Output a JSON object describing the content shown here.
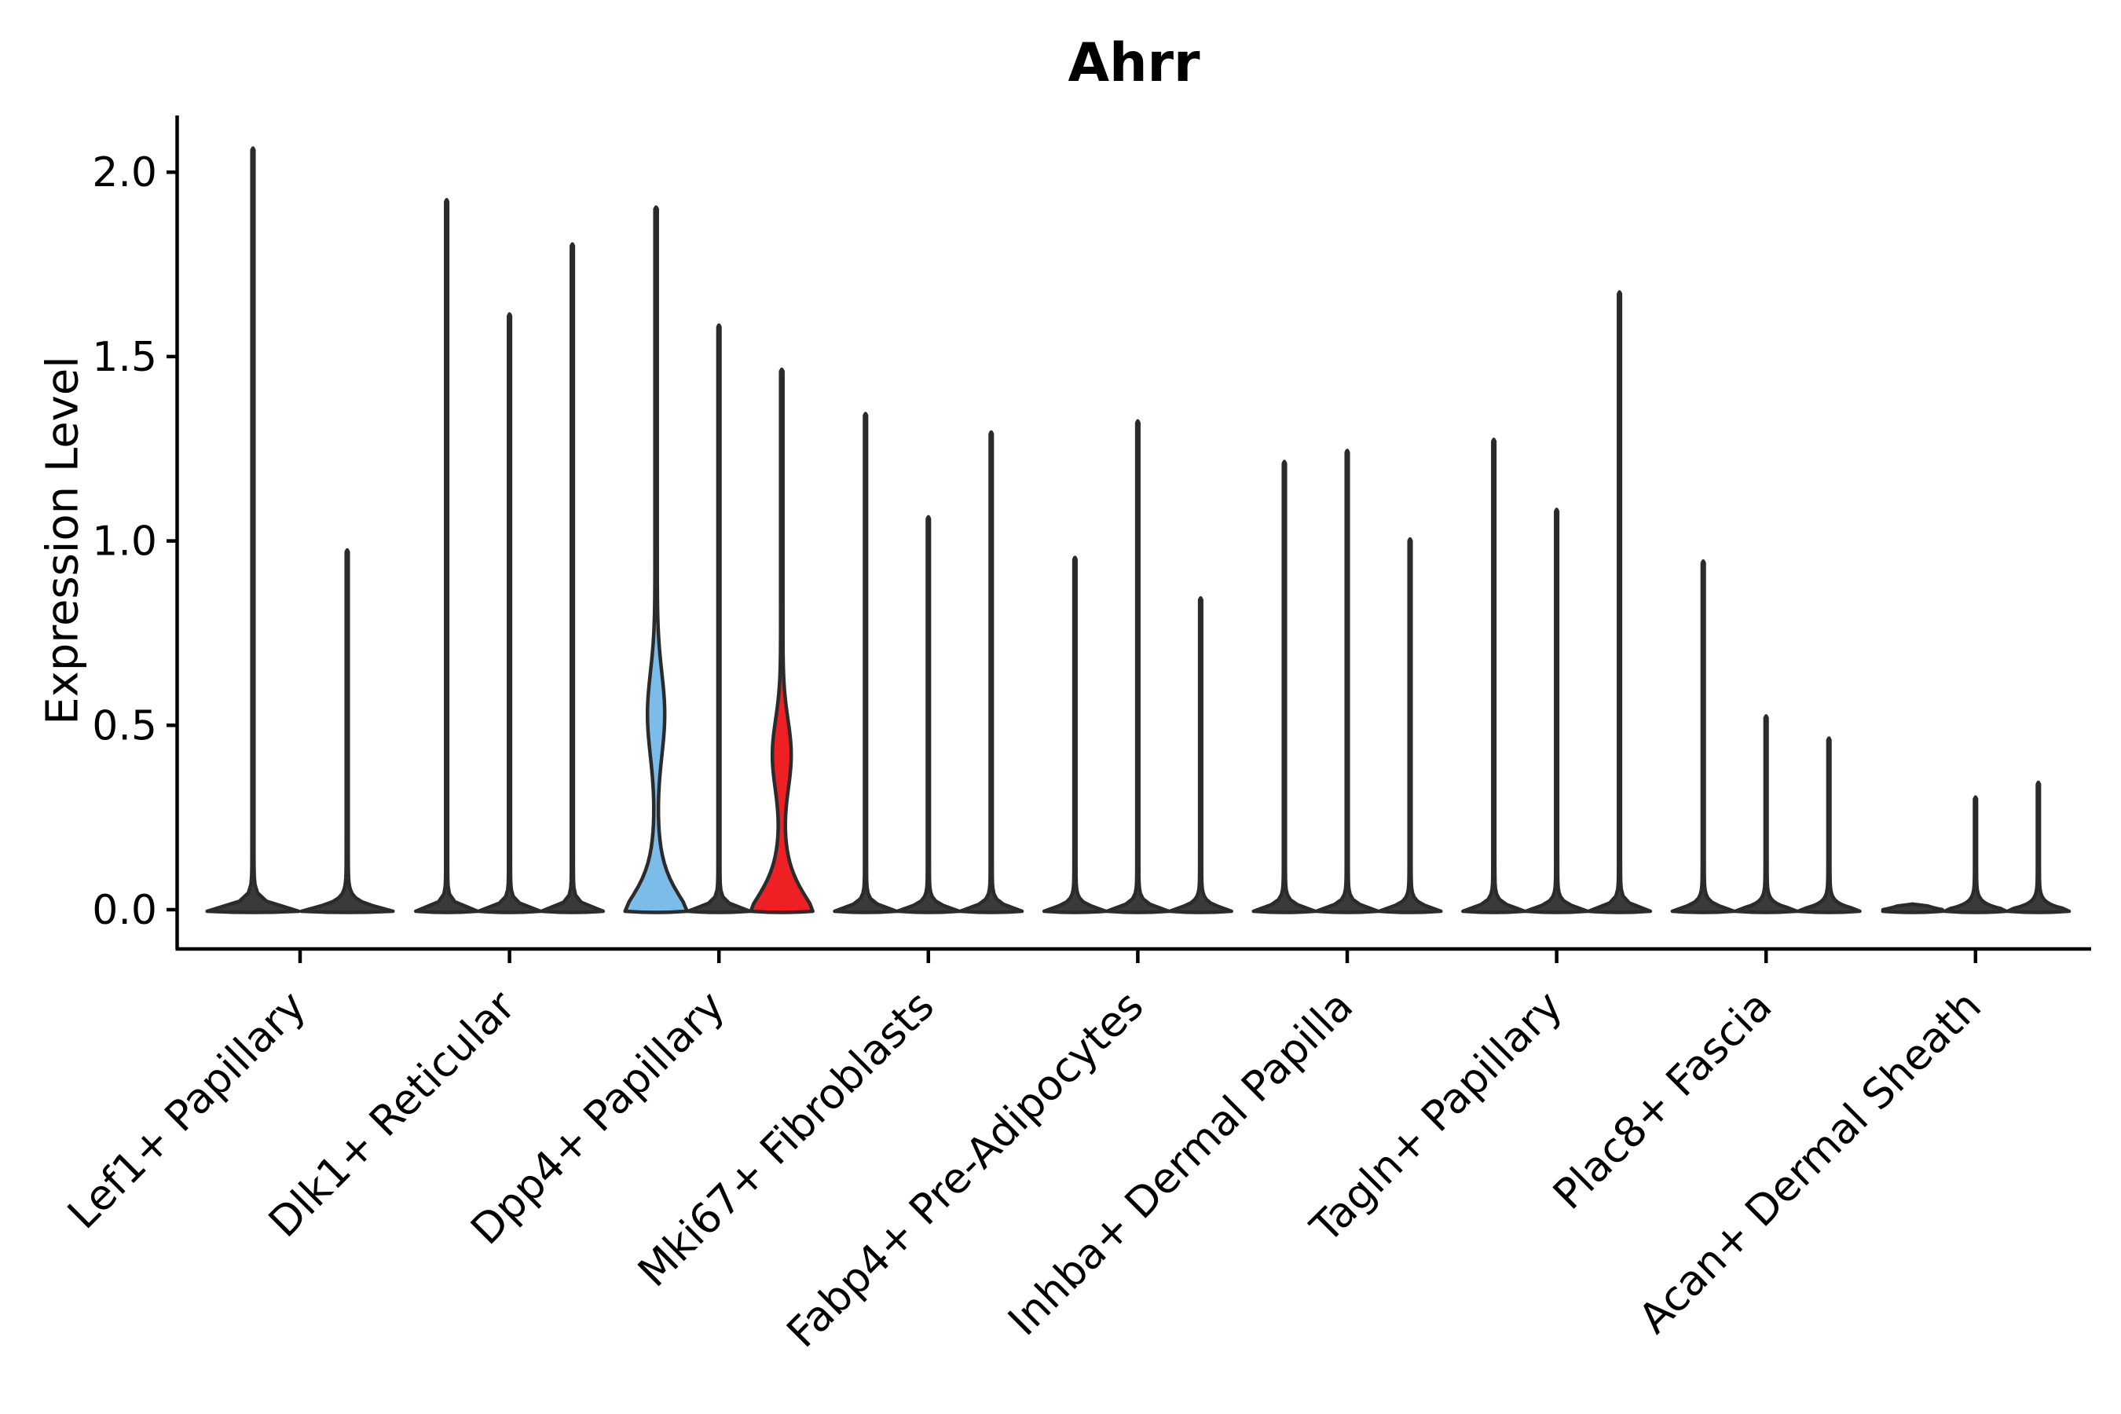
{
  "chart_data": {
    "type": "violin",
    "title": "Ahrr",
    "ylabel": "Expression Level",
    "xlabel": "",
    "grid": false,
    "legend": "none",
    "ylim": [
      -0.11,
      2.15
    ],
    "yticks": [
      "0.0",
      "0.5",
      "1.0",
      "1.5",
      "2.0"
    ],
    "ytick_values": [
      0.0,
      0.5,
      1.0,
      1.5,
      2.0
    ],
    "categories": [
      "Lef1+ Papillary",
      "Dlk1+ Reticular",
      "Dpp4+ Papillary",
      "Mki67+ Fibroblasts",
      "Fabp4+ Pre-Adipocytes",
      "Inhba+ Dermal Papilla",
      "Tagln+ Papillary",
      "Plac8+ Fascia",
      "Acan+ Dermal Sheath"
    ],
    "groups": [
      {
        "label": "Lef1+ Papillary",
        "violins": [
          {
            "max": 2.06,
            "style": "plain"
          },
          {
            "max": 0.97,
            "style": "plain"
          }
        ]
      },
      {
        "label": "Dlk1+ Reticular",
        "violins": [
          {
            "max": 1.92,
            "style": "plain"
          },
          {
            "max": 1.61,
            "style": "plain"
          },
          {
            "max": 1.8,
            "style": "plain"
          }
        ]
      },
      {
        "label": "Dpp4+ Papillary",
        "violins": [
          {
            "max": 1.9,
            "style": "highlight-blue",
            "body": {
              "center": 0.53,
              "spread": 0.16,
              "width": 9.5
            }
          },
          {
            "max": 1.58,
            "style": "plain"
          },
          {
            "max": 1.46,
            "style": "highlight-red",
            "body": {
              "center": 0.42,
              "spread": 0.135,
              "width": 10.5
            }
          }
        ]
      },
      {
        "label": "Mki67+ Fibroblasts",
        "violins": [
          {
            "max": 1.34,
            "style": "plain"
          },
          {
            "max": 1.06,
            "style": "plain"
          },
          {
            "max": 1.29,
            "style": "plain"
          }
        ]
      },
      {
        "label": "Fabp4+ Pre-Adipocytes",
        "violins": [
          {
            "max": 0.95,
            "style": "plain"
          },
          {
            "max": 1.32,
            "style": "plain"
          },
          {
            "max": 0.84,
            "style": "plain"
          }
        ]
      },
      {
        "label": "Inhba+ Dermal Papilla",
        "violins": [
          {
            "max": 1.21,
            "style": "plain"
          },
          {
            "max": 1.24,
            "style": "plain"
          },
          {
            "max": 1.0,
            "style": "plain"
          }
        ]
      },
      {
        "label": "Tagln+ Papillary",
        "violins": [
          {
            "max": 1.27,
            "style": "plain"
          },
          {
            "max": 1.08,
            "style": "plain"
          },
          {
            "max": 1.67,
            "style": "plain"
          }
        ]
      },
      {
        "label": "Plac8+ Fascia",
        "violins": [
          {
            "max": 0.94,
            "style": "plain"
          },
          {
            "max": 0.52,
            "style": "plain"
          },
          {
            "max": 0.46,
            "style": "plain"
          }
        ]
      },
      {
        "label": "Acan+ Dermal Sheath",
        "violins": [
          {
            "max": 0.01,
            "style": "plain"
          },
          {
            "max": 0.3,
            "style": "plain"
          },
          {
            "max": 0.34,
            "style": "plain"
          }
        ]
      }
    ],
    "colors": {
      "highlight_blue": "#7BBCE8",
      "highlight_red": "#EE2024",
      "violin_stroke": "#2b2b2b",
      "plain_fill": "#3a3a3a",
      "axis": "#000000",
      "background": "#ffffff"
    }
  }
}
